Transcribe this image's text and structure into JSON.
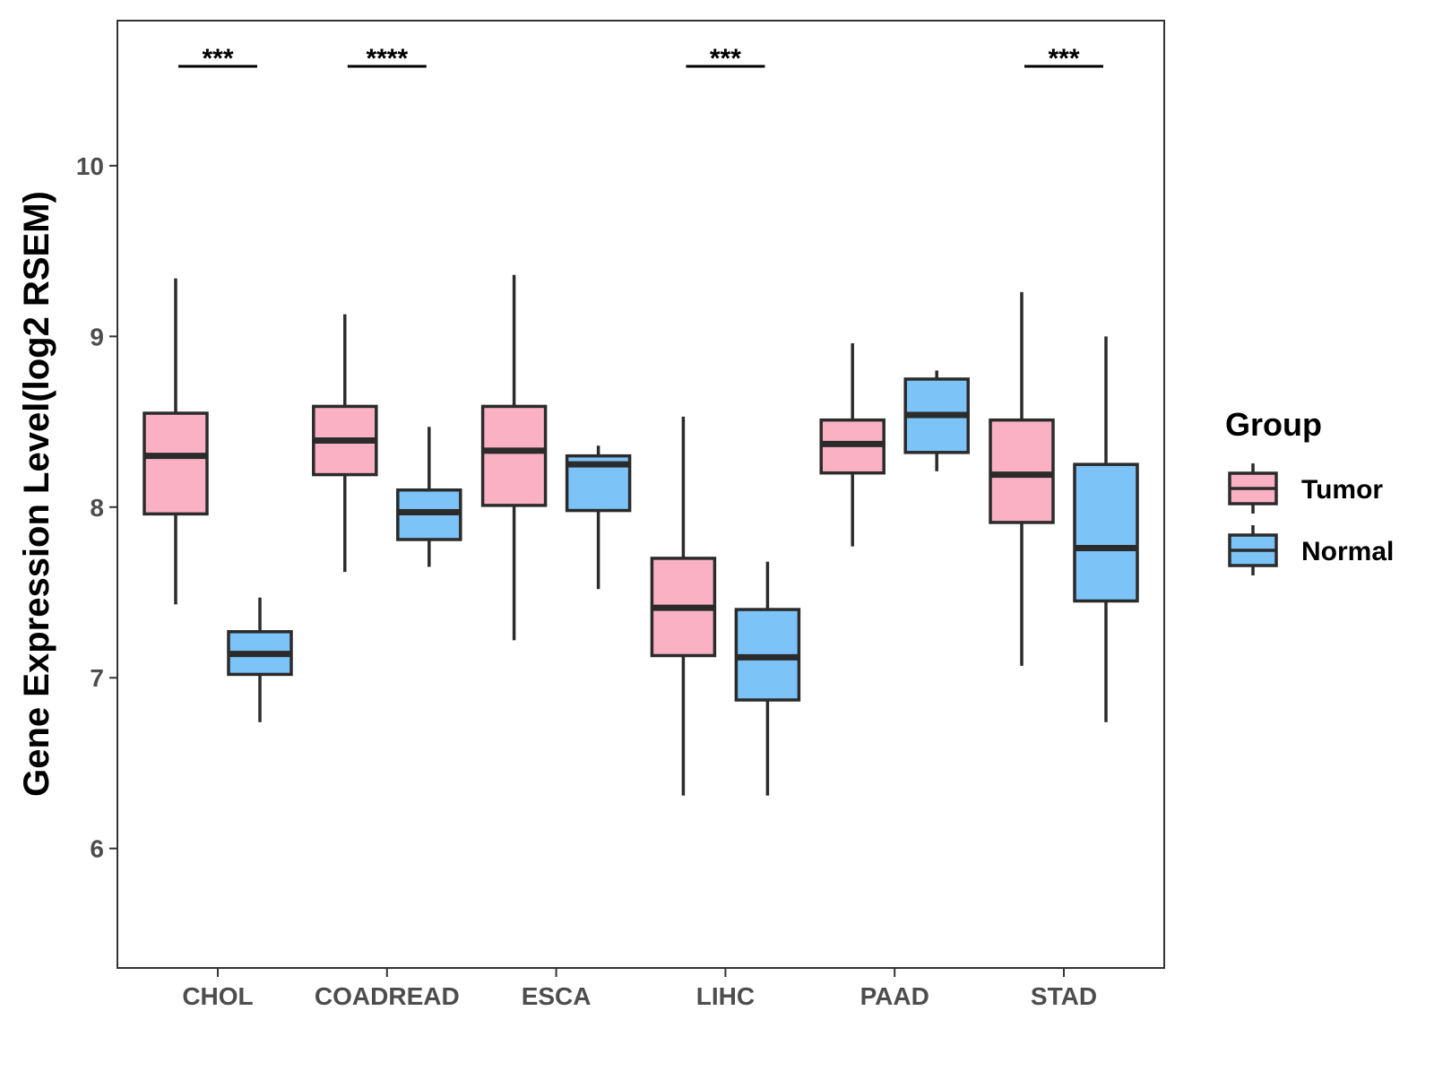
{
  "chart_data": {
    "type": "box",
    "xlabel": "",
    "ylabel": "Gene Expression Level(log2 RSEM)",
    "ylim": [
      5.3,
      10.85
    ],
    "yticks": [
      6,
      7,
      8,
      9,
      10
    ],
    "grid": false,
    "legend_placement": "right",
    "legend": {
      "title": "Group",
      "entries": [
        "Tumor",
        "Normal"
      ]
    },
    "categories": [
      "CHOL",
      "COADREAD",
      "ESCA",
      "LIHC",
      "PAAD",
      "STAD"
    ],
    "series": [
      {
        "name": "Tumor",
        "color": "#fbb1c4",
        "boxes": [
          {
            "min": 7.43,
            "q1": 7.96,
            "median": 8.3,
            "q3": 8.55,
            "max": 9.34
          },
          {
            "min": 7.62,
            "q1": 8.19,
            "median": 8.39,
            "q3": 8.59,
            "max": 9.13
          },
          {
            "min": 7.22,
            "q1": 8.01,
            "median": 8.33,
            "q3": 8.59,
            "max": 9.36
          },
          {
            "min": 6.31,
            "q1": 7.13,
            "median": 7.41,
            "q3": 7.7,
            "max": 8.53
          },
          {
            "min": 7.77,
            "q1": 8.2,
            "median": 8.37,
            "q3": 8.51,
            "max": 8.96
          },
          {
            "min": 7.07,
            "q1": 7.91,
            "median": 8.19,
            "q3": 8.51,
            "max": 9.26
          }
        ]
      },
      {
        "name": "Normal",
        "color": "#7cc3f8",
        "boxes": [
          {
            "min": 6.74,
            "q1": 7.02,
            "median": 7.14,
            "q3": 7.27,
            "max": 7.47
          },
          {
            "min": 7.65,
            "q1": 7.81,
            "median": 7.97,
            "q3": 8.1,
            "max": 8.47
          },
          {
            "min": 7.52,
            "q1": 7.98,
            "median": 8.25,
            "q3": 8.3,
            "max": 8.36
          },
          {
            "min": 6.31,
            "q1": 6.87,
            "median": 7.12,
            "q3": 7.4,
            "max": 7.68
          },
          {
            "min": 8.21,
            "q1": 8.32,
            "median": 8.54,
            "q3": 8.75,
            "max": 8.8
          },
          {
            "min": 6.74,
            "q1": 7.45,
            "median": 7.76,
            "q3": 8.25,
            "max": 9.0
          }
        ]
      }
    ],
    "annotations": [
      {
        "category": "CHOL",
        "label": "***"
      },
      {
        "category": "COADREAD",
        "label": "****"
      },
      {
        "category": "LIHC",
        "label": "***"
      },
      {
        "category": "STAD",
        "label": "***"
      }
    ]
  }
}
